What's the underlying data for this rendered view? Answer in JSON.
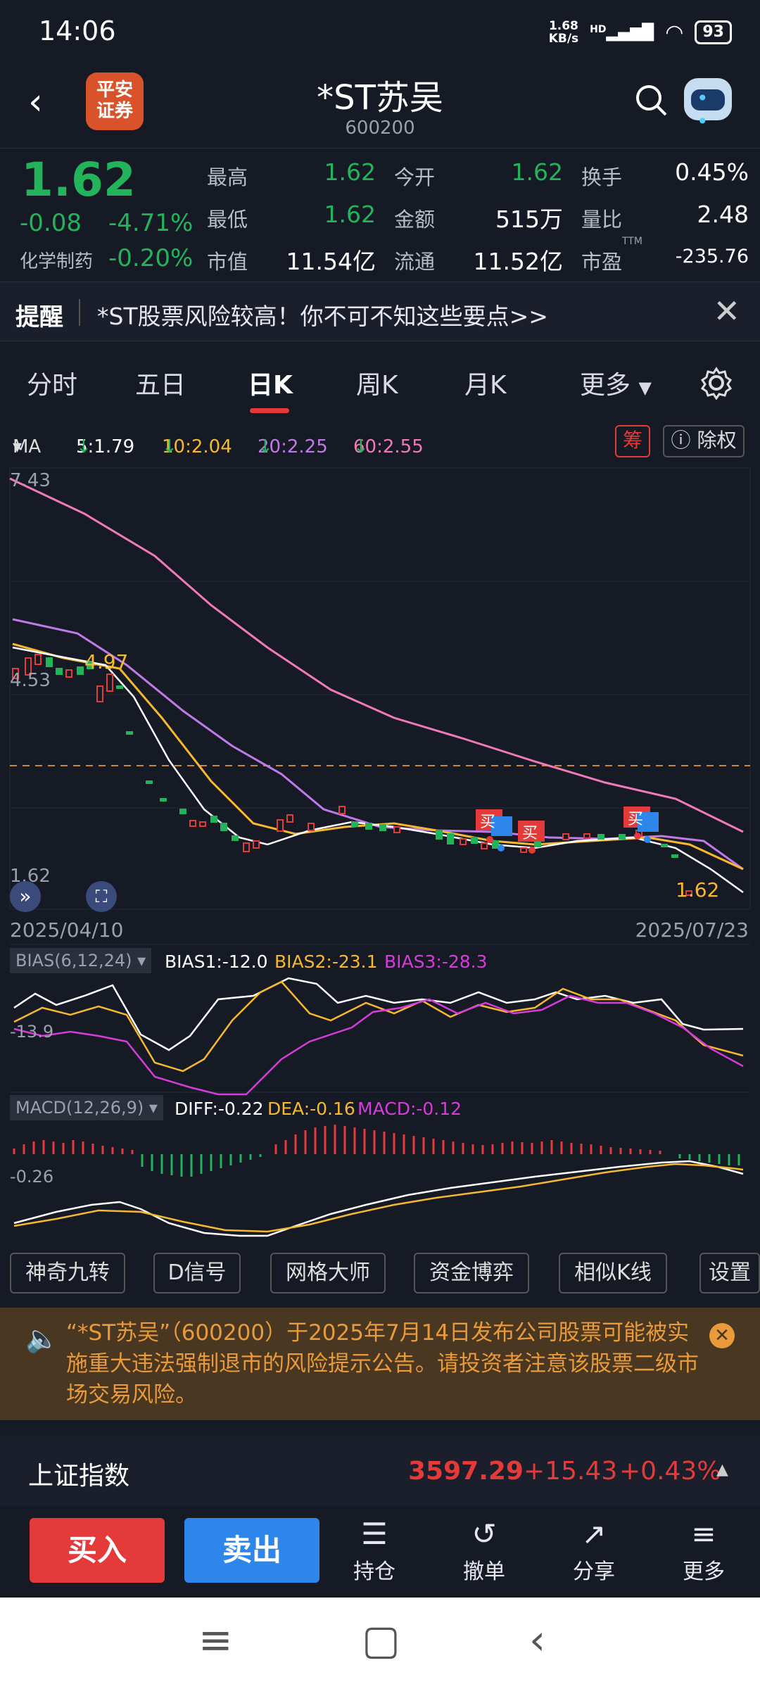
{
  "status_bar": {
    "time": "14:06",
    "net_speed_value": "1.68",
    "net_speed_unit": "KB/s",
    "hd": "HD",
    "battery": "93"
  },
  "header": {
    "logo_line1": "平安",
    "logo_line2": "证券",
    "title": "*ST苏吴",
    "code": "600200"
  },
  "quote": {
    "price": "1.62",
    "change": "-0.08",
    "change_pct": "-4.71%",
    "sector": "化学制药",
    "sector_pct": "-0.20%",
    "fields": [
      {
        "label": "最高",
        "value": "1.62"
      },
      {
        "label": "今开",
        "value": "1.62"
      },
      {
        "label": "换手",
        "value": "0.45%"
      },
      {
        "label": "最低",
        "value": "1.62"
      },
      {
        "label": "金额",
        "value": "515万"
      },
      {
        "label": "量比",
        "value": "2.48"
      },
      {
        "label": "市值",
        "value": "11.54亿"
      },
      {
        "label": "流通",
        "value": "11.52亿"
      },
      {
        "label": "市盈",
        "value": "-235.76"
      }
    ],
    "ttm": "TTM"
  },
  "alert": {
    "title": "提醒",
    "text": "*ST股票风险较高！你不可不知这些要点>>"
  },
  "tabs": [
    "分时",
    "五日",
    "日K",
    "周K",
    "月K",
    "更多"
  ],
  "ma": {
    "label": "MA",
    "ma5": "5:1.79",
    "ma10": "10:2.04",
    "ma20": "20:2.25",
    "ma60": "60:2.55"
  },
  "chips": {
    "chou": "筹",
    "chuquan": "除权"
  },
  "kline": {
    "high_label": "7.43",
    "mid_label": "4.53",
    "low_label": "1.62",
    "peak_value": "4.97",
    "last_value": "1.62",
    "date_start": "2025/04/10",
    "date_end": "2025/07/23",
    "buy_tag": "买",
    "buy_tag2": "买",
    "buy_tag3": "买"
  },
  "bias": {
    "label": "BIAS(6,12,24)",
    "b1": "BIAS1:-12.0",
    "b2": "BIAS2:-23.1",
    "b3": "BIAS3:-28.3",
    "axis": "-13.9"
  },
  "macd": {
    "label": "MACD(12,26,9)",
    "diff": "DIFF:-0.22",
    "dea": "DEA:-0.16",
    "macd": "MACD:-0.12",
    "axis": "-0.26"
  },
  "tools": [
    "神奇九转",
    "D信号",
    "网格大师",
    "资金博弈",
    "相似K线",
    "设置"
  ],
  "risk": {
    "text": "“*ST苏吴”（600200）于2025年7月14日发布公司股票可能被实施重大违法强制退市的风险提示公告。请投资者注意该股票二级市场交易风险。"
  },
  "index": {
    "name": "上证指数",
    "value": "3597.29",
    "change": "+15.43",
    "pct": "+0.43%"
  },
  "bottom": {
    "buy": "买入",
    "sell": "卖出",
    "hold": "持仓",
    "cancel": "撤单",
    "share": "分享",
    "more": "更多"
  },
  "colors": {
    "up": "#e43a3a",
    "down": "#22b35b",
    "ma5": "#ffffff",
    "ma10": "#f5b82e",
    "ma20": "#c07ae8",
    "ma60": "#f07ab8",
    "accent": "#2f86ea"
  }
}
